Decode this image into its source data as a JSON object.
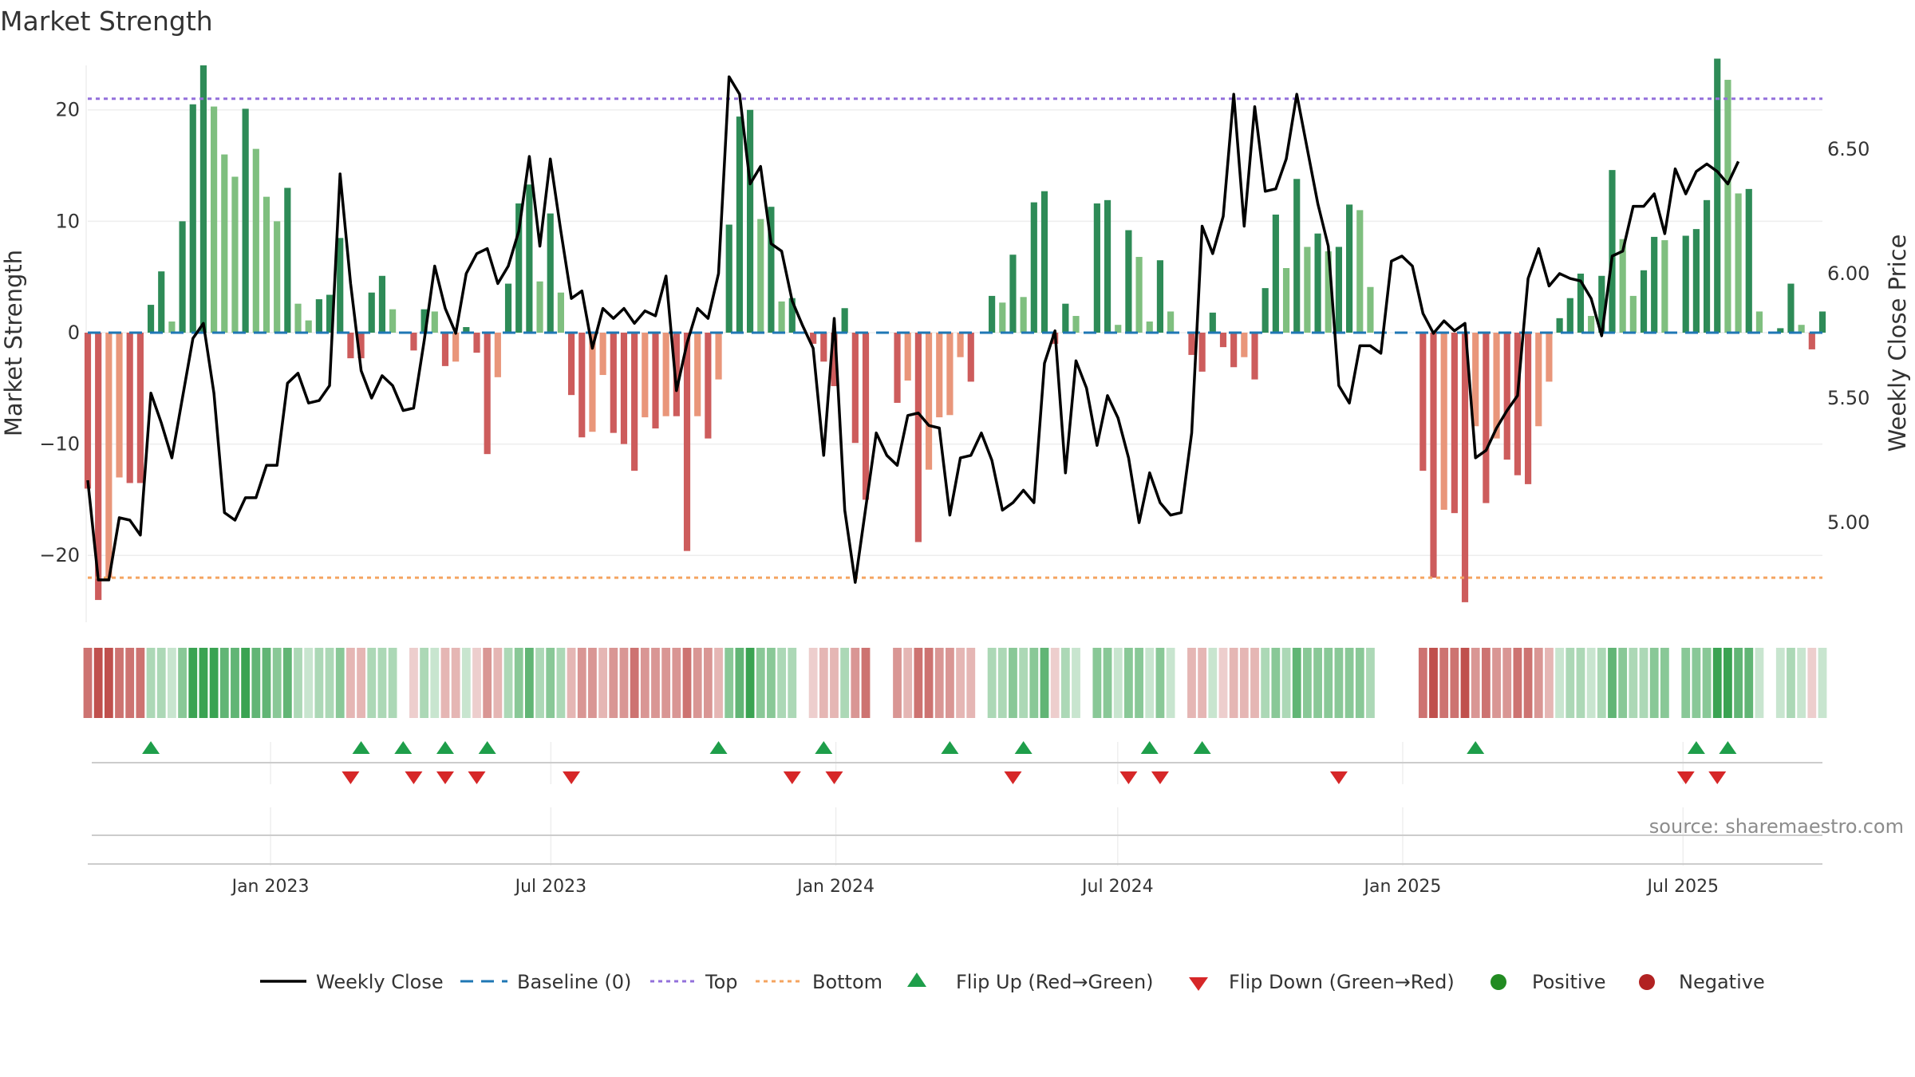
{
  "chart_data": {
    "type": "bar",
    "title": "Market Strength",
    "ylabel": "Market Strength",
    "y2label": "Weekly Close Price",
    "ylim": [
      -26,
      27
    ],
    "y2lim": [
      4.6,
      6.97
    ],
    "yticks": [
      -20,
      -10,
      0,
      10,
      20
    ],
    "y2ticks": [
      5.0,
      5.5,
      6.0,
      6.5
    ],
    "ytick_labels": [
      "−20",
      "−10",
      "0",
      "10",
      "20"
    ],
    "y2tick_labels": [
      "5.00",
      "5.50",
      "6.00",
      "6.50"
    ],
    "top_line": 21,
    "bottom_line": -22,
    "x_start": "2022-09-05",
    "x_end": "2025-09-29",
    "x_ticks": [
      {
        "date": "2023-01-01",
        "label": "Jan 2023"
      },
      {
        "date": "2023-07-01",
        "label": "Jul 2023"
      },
      {
        "date": "2024-01-01",
        "label": "Jan 2024"
      },
      {
        "date": "2024-07-01",
        "label": "Jul 2024"
      },
      {
        "date": "2025-01-01",
        "label": "Jan 2025"
      },
      {
        "date": "2025-07-01",
        "label": "Jul 2025"
      }
    ],
    "strength": [
      -14,
      -24,
      -22,
      -13,
      -13.5,
      -13.5,
      2.5,
      5.5,
      1,
      10,
      20.5,
      24,
      20.3,
      16,
      14,
      20.1,
      16.5,
      12.2,
      10,
      13,
      2.6,
      1.1,
      3,
      3.4,
      8.5,
      -2.3,
      -2.3,
      3.6,
      5.1,
      2.1,
      0,
      -1.6,
      2.1,
      1.9,
      -3,
      -2.6,
      0.5,
      -1.8,
      -10.9,
      -4,
      4.4,
      11.6,
      13.3,
      4.6,
      10.7,
      3.6,
      -5.6,
      -9.4,
      -8.9,
      -3.8,
      -9,
      -10,
      -12.4,
      -7.6,
      -8.6,
      -7.5,
      -7.5,
      -19.6,
      -7.5,
      -9.5,
      -4.2,
      9.7,
      19.4,
      20,
      10.2,
      11.3,
      2.8,
      3.1,
      0,
      -1,
      -2.6,
      -4.8,
      2.2,
      -9.9,
      -15,
      0,
      0,
      -6.3,
      -4.3,
      -18.8,
      -12.3,
      -7.6,
      -7.4,
      -2.2,
      -4.4,
      0,
      3.3,
      2.7,
      7,
      3.2,
      11.7,
      12.7,
      -1,
      2.6,
      1.5,
      0,
      11.6,
      11.9,
      0.7,
      9.2,
      6.8,
      1,
      6.5,
      1.9,
      0,
      -2,
      -3.5,
      1.8,
      -1.3,
      -3.1,
      -2.2,
      -4.2,
      4,
      10.6,
      5.8,
      13.8,
      7.7,
      8.9,
      7.3,
      7.7,
      11.5,
      11,
      4.1,
      0,
      0,
      0,
      0,
      -12.4,
      -22,
      -15.9,
      -16.2,
      -24.2,
      -8.4,
      -15.3,
      -9.5,
      -11.4,
      -12.8,
      -13.6,
      -8.4,
      -4.4,
      1.3,
      3.1,
      5.3,
      1.5,
      5.1,
      14.6,
      8.4,
      3.3,
      5.6,
      8.6,
      8.3,
      0,
      8.7,
      9.3,
      11.9,
      24.6,
      22.7,
      12.5,
      12.9,
      1.9,
      0,
      0.4,
      4.4,
      0.7,
      -1.5,
      1.9
    ],
    "price": [
      5.17,
      4.77,
      4.77,
      5.02,
      5.01,
      4.95,
      5.52,
      5.4,
      5.26,
      5.5,
      5.74,
      5.8,
      5.52,
      5.04,
      5.01,
      5.1,
      5.1,
      5.23,
      5.23,
      5.56,
      5.6,
      5.48,
      5.49,
      5.55,
      6.4,
      5.96,
      5.61,
      5.5,
      5.59,
      5.55,
      5.45,
      5.46,
      5.73,
      6.03,
      5.86,
      5.76,
      6.0,
      6.08,
      6.1,
      5.96,
      6.03,
      6.17,
      6.47,
      6.11,
      6.46,
      6.17,
      5.9,
      5.93,
      5.7,
      5.86,
      5.82,
      5.86,
      5.8,
      5.85,
      5.83,
      5.99,
      5.53,
      5.72,
      5.86,
      5.82,
      6.0,
      6.79,
      6.72,
      6.36,
      6.43,
      6.12,
      6.09,
      5.89,
      5.79,
      5.7,
      5.27,
      5.82,
      5.05,
      4.76,
      5.06,
      5.36,
      5.27,
      5.23,
      5.43,
      5.44,
      5.39,
      5.38,
      5.03,
      5.26,
      5.27,
      5.36,
      5.25,
      5.05,
      5.08,
      5.13,
      5.08,
      5.64,
      5.77,
      5.2,
      5.65,
      5.54,
      5.31,
      5.51,
      5.42,
      5.26,
      5.0,
      5.2,
      5.08,
      5.03,
      5.04,
      5.36,
      6.19,
      6.08,
      6.23,
      6.72,
      6.19,
      6.67,
      6.33,
      6.34,
      6.46,
      6.72,
      6.5,
      6.28,
      6.11,
      5.55,
      5.48,
      5.71,
      5.71,
      5.68,
      6.05,
      6.07,
      6.03,
      5.84,
      5.76,
      5.81,
      5.77,
      5.8,
      5.26,
      5.29,
      5.38,
      5.45,
      5.51,
      5.98,
      6.1,
      5.95,
      6.0,
      5.98,
      5.97,
      5.9,
      5.75,
      6.07,
      6.09,
      6.27,
      6.27,
      6.32,
      6.16,
      6.42,
      6.32,
      6.41,
      6.44,
      6.41,
      6.36,
      6.45
    ],
    "flip_up_idx": [
      6,
      26,
      30,
      34,
      38,
      60,
      70,
      82,
      89,
      101,
      106,
      132,
      153,
      156
    ],
    "flip_down_idx": [
      25,
      31,
      34,
      37,
      46,
      67,
      71,
      88,
      99,
      102,
      119,
      152,
      155
    ],
    "positive_color": "#2e8b57",
    "positive_light_color": "#7fbf7f",
    "negative_color": "#cd5c5c",
    "negative_light_color": "#e9967a",
    "top_color": "#9370db",
    "bottom_color": "#f4a460",
    "baseline_color": "#1f77b4",
    "price_color": "#000000",
    "flip_up_color": "#1e9e4a",
    "flip_down_color": "#d62728",
    "legend": {
      "weekly_close": "Weekly Close",
      "baseline": "Baseline (0)",
      "top": "Top",
      "bottom": "Bottom",
      "flip_up": "Flip Up (Red→Green)",
      "flip_down": "Flip Down (Green→Red)",
      "positive": "Positive",
      "negative": "Negative"
    },
    "legend_colors": {
      "positive": "#228b22",
      "negative": "#b22222"
    },
    "source": "source: sharemaestro.com"
  }
}
